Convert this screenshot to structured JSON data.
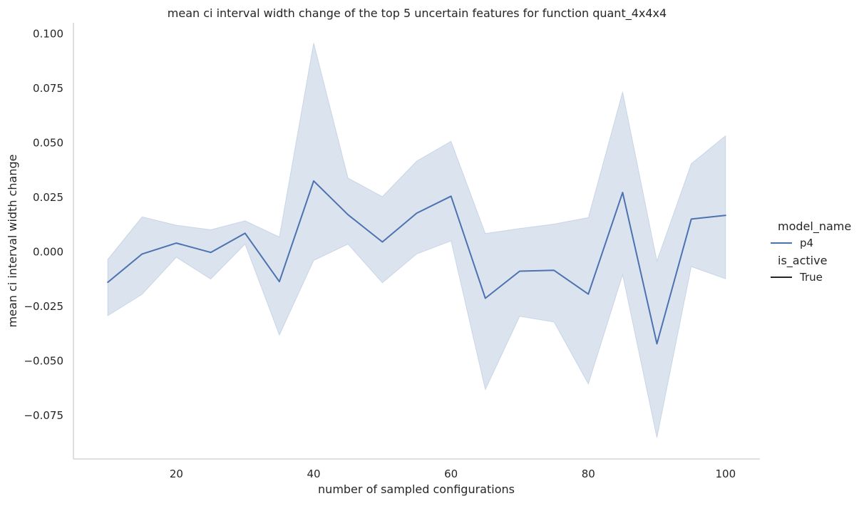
{
  "chart_data": {
    "type": "line",
    "title": "mean ci interval width change of the top 5 uncertain features for function quant_4x4x4",
    "xlabel": "number of sampled configurations",
    "ylabel": "mean ci interval width change",
    "xlim": [
      5,
      105
    ],
    "ylim": [
      -0.095,
      0.105
    ],
    "x_ticks": [
      20,
      40,
      60,
      80,
      100
    ],
    "x_tick_labels": [
      "20",
      "40",
      "60",
      "80",
      "100"
    ],
    "y_ticks": [
      -0.075,
      -0.05,
      -0.025,
      0.0,
      0.025,
      0.05,
      0.075,
      0.1
    ],
    "y_tick_labels": [
      "−0.075",
      "−0.050",
      "−0.025",
      "0.000",
      "0.025",
      "0.050",
      "0.075",
      "0.100"
    ],
    "grid": false,
    "legend_position": "right",
    "series": [
      {
        "name": "p4",
        "color": "#4c72b0",
        "band_color": "#4c72b0",
        "x": [
          10,
          15,
          20,
          25,
          30,
          35,
          40,
          45,
          50,
          55,
          60,
          65,
          70,
          75,
          80,
          85,
          90,
          95,
          100
        ],
        "mean": [
          -0.014,
          -0.001,
          0.004,
          -0.0003,
          0.0085,
          -0.0137,
          0.0325,
          0.017,
          0.0045,
          0.0177,
          0.0255,
          -0.0213,
          -0.0089,
          -0.0085,
          -0.0194,
          0.0272,
          -0.0422,
          0.015,
          0.0167
        ],
        "lower": [
          -0.0293,
          -0.0195,
          -0.0025,
          -0.0125,
          0.0035,
          -0.0382,
          -0.004,
          0.0035,
          -0.0142,
          -0.001,
          0.005,
          -0.0632,
          -0.0296,
          -0.0322,
          -0.0606,
          -0.0106,
          -0.0853,
          -0.0068,
          -0.0124
        ],
        "upper": [
          -0.0035,
          0.016,
          0.0122,
          0.0101,
          0.0142,
          0.0068,
          0.0958,
          0.0338,
          0.0253,
          0.0416,
          0.0507,
          0.0084,
          0.0107,
          0.0127,
          0.0157,
          0.0733,
          -0.0042,
          0.0404,
          0.0532
        ]
      }
    ],
    "legend": {
      "hue_title": "model_name",
      "hue_entries": [
        {
          "label": "p4",
          "color": "#4c72b0"
        }
      ],
      "style_title": "is_active",
      "style_entries": [
        {
          "label": "True",
          "color": "#262626"
        }
      ]
    }
  }
}
